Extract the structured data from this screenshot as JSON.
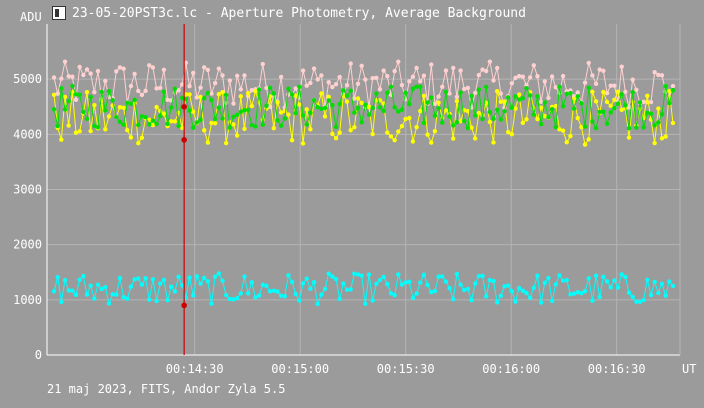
{
  "window": {
    "title": "23-05-20PST3c.lc - Aperture Photometry, Average Background",
    "icon": "app-icon"
  },
  "footer": {
    "info": "21 maj 2023, FITS, Andor Zyla 5.5"
  },
  "colors": {
    "background": "#9b9b9b",
    "grid": "#b4b4b4",
    "axis": "#ffffff",
    "cursor": "#cc0000",
    "cursor_marker": "#cc0000",
    "series": [
      "#ffd0d0",
      "#ffff00",
      "#00dd00",
      "#00ffff"
    ]
  },
  "chart_data": {
    "type": "line",
    "title": "",
    "xlabel": "UT",
    "ylabel": "ADU",
    "xlim": [
      "00:13:48",
      "00:16:48"
    ],
    "ylim": [
      0,
      6000
    ],
    "x_ticks": [
      "00:14:30",
      "00:15:00",
      "00:15:30",
      "00:16:00",
      "00:16:30"
    ],
    "y_ticks": [
      "0",
      "1000",
      "2000",
      "3000",
      "4000",
      "5000"
    ],
    "grid": true,
    "legend": "none",
    "cursor_time": "00:14:27",
    "series": [
      {
        "color": "#ffd0d0",
        "level": 4900,
        "amplitude": 300
      },
      {
        "color": "#ffff00",
        "level": 4300,
        "amplitude": 350
      },
      {
        "color": "#00dd00",
        "level": 4500,
        "amplitude": 280
      },
      {
        "color": "#00ffff",
        "level": 1200,
        "amplitude": 200
      }
    ],
    "cursor_values": [
      4500,
      3900,
      900
    ]
  }
}
